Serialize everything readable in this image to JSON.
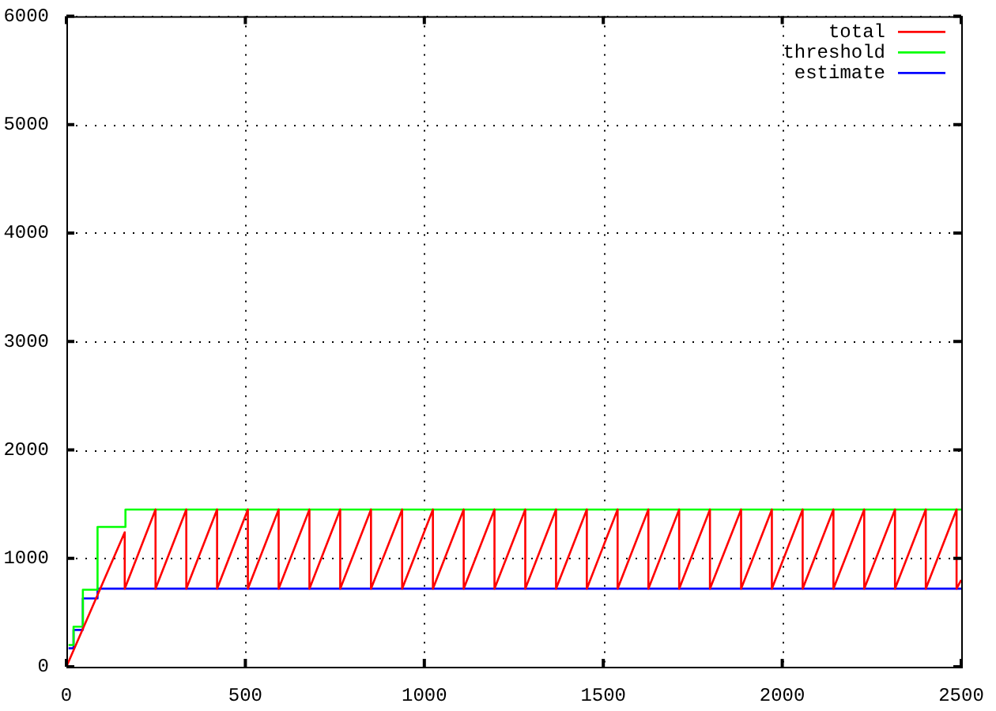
{
  "chart_data": {
    "type": "line",
    "xlim": [
      0,
      2500
    ],
    "xticks": [
      0,
      500,
      1000,
      1500,
      2000,
      2500
    ],
    "ylim": [
      0,
      6000
    ],
    "yticks": [
      0,
      1000,
      2000,
      3000,
      4000,
      5000,
      6000
    ],
    "grid": true,
    "legend": "top right",
    "series": [
      {
        "name": "total",
        "color": "#ff0000",
        "x": [
          0,
          163,
          163,
          249,
          249,
          335,
          335,
          421,
          421,
          507,
          507,
          593,
          593,
          679,
          679,
          765,
          765,
          851,
          851,
          938,
          938,
          1024,
          1024,
          1110,
          1110,
          1196,
          1196,
          1282,
          1282,
          1368,
          1368,
          1454,
          1454,
          1540,
          1540,
          1626,
          1626,
          1712,
          1712,
          1798,
          1798,
          1885,
          1885,
          1971,
          1971,
          2057,
          2057,
          2143,
          2143,
          2229,
          2229,
          2315,
          2315,
          2401,
          2401,
          2487,
          2487,
          2500
        ],
        "values": [
          0,
          1240,
          720,
          1450,
          720,
          1450,
          720,
          1450,
          720,
          1450,
          720,
          1450,
          720,
          1450,
          720,
          1450,
          720,
          1450,
          720,
          1450,
          720,
          1450,
          720,
          1450,
          720,
          1450,
          720,
          1450,
          720,
          1450,
          720,
          1450,
          720,
          1450,
          720,
          1450,
          720,
          1450,
          720,
          1450,
          720,
          1450,
          720,
          1450,
          720,
          1450,
          720,
          1450,
          720,
          1450,
          720,
          1450,
          720,
          1450,
          720,
          1450,
          720,
          800
        ]
      },
      {
        "name": "threshold",
        "type": "step",
        "color": "#00ff00",
        "x": [
          6,
          20,
          46,
          87,
          165,
          2500
        ],
        "values": [
          200,
          370,
          710,
          1290,
          1450,
          1450
        ]
      },
      {
        "name": "estimate",
        "type": "step",
        "color": "#0000ff",
        "x": [
          6,
          20,
          46,
          87,
          165,
          2500
        ],
        "values": [
          170,
          340,
          630,
          720,
          720,
          720
        ]
      }
    ]
  }
}
